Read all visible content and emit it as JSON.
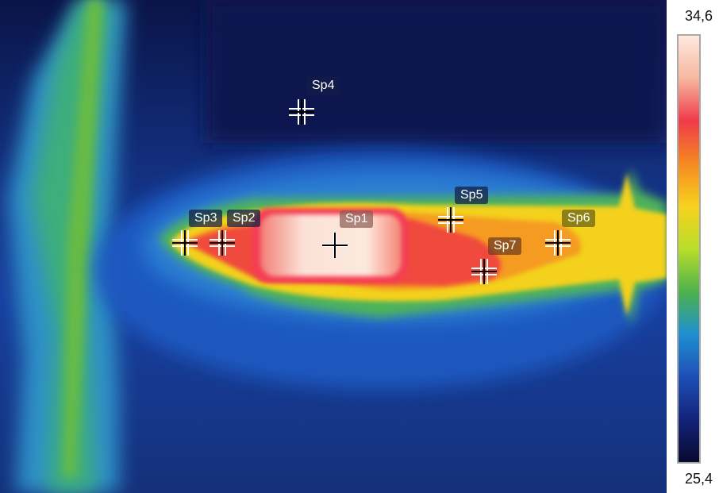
{
  "scale": {
    "max": "34,6",
    "min": "25,4",
    "palette": [
      "#fde9dd",
      "#f7b7a0",
      "#f03a4a",
      "#f58a20",
      "#f7d21e",
      "#b9dd2a",
      "#4eb24b",
      "#1f8fd0",
      "#1d4fb6",
      "#14237a",
      "#070a2e"
    ]
  },
  "spots": [
    {
      "id": "sp1",
      "label": "Sp1",
      "style": "white"
    },
    {
      "id": "sp2",
      "label": "Sp2",
      "style": "dark"
    },
    {
      "id": "sp3",
      "label": "Sp3",
      "style": "dark"
    },
    {
      "id": "sp4",
      "label": "Sp4",
      "style": "dark"
    },
    {
      "id": "sp5",
      "label": "Sp5",
      "style": "dark"
    },
    {
      "id": "sp6",
      "label": "Sp6",
      "style": "olive"
    },
    {
      "id": "sp7",
      "label": "Sp7",
      "style": "hot"
    }
  ]
}
